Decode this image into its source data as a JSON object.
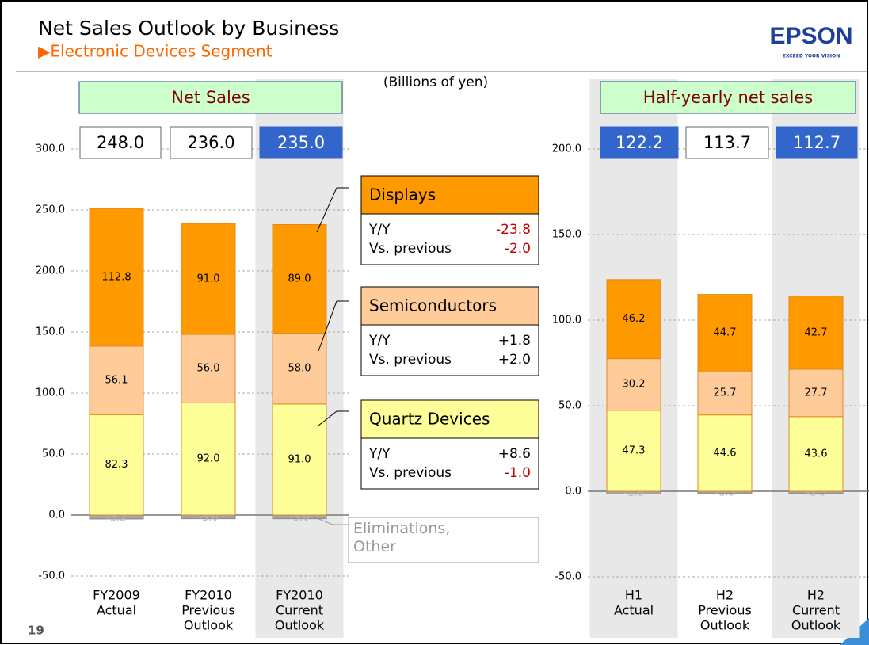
{
  "title": "Net Sales Outlook by Business",
  "subtitle": "▶Electronic Devices Segment",
  "logo": "EPSON",
  "logo_tagline": "EXCEED YOUR VISION",
  "unit": "(Billions of yen)",
  "page_number": "19",
  "callouts": [
    {
      "name": "Displays",
      "color": "#ff9900",
      "rows": [
        {
          "label": "Y/Y",
          "value": "-23.8",
          "color": "#c00000"
        },
        {
          "label": "Vs. previous",
          "value": "-2.0",
          "color": "#c00000"
        }
      ]
    },
    {
      "name": "Semiconductors",
      "color": "#ffcc99",
      "rows": [
        {
          "label": "Y/Y",
          "value": "+1.8",
          "color": "#000000"
        },
        {
          "label": "Vs. previous",
          "value": "+2.0",
          "color": "#000000"
        }
      ]
    },
    {
      "name": "Quartz Devices",
      "color": "#ffff99",
      "rows": [
        {
          "label": "Y/Y",
          "value": "+8.6",
          "color": "#000000"
        },
        {
          "label": "Vs. previous",
          "value": "-1.0",
          "color": "#c00000"
        }
      ]
    }
  ],
  "other_label": "Eliminations, Other",
  "chart_data": [
    {
      "type": "stacked_bar",
      "title": "Net Sales",
      "categories": [
        [
          "FY2009",
          "Actual"
        ],
        [
          "FY2010",
          "Previous",
          "Outlook"
        ],
        [
          "FY2010",
          "Current",
          "Outlook"
        ]
      ],
      "highlight": [
        false,
        false,
        true
      ],
      "totals": [
        248.0,
        236.0,
        235.0
      ],
      "total_labels": [
        "248.0",
        "236.0",
        "235.0"
      ],
      "series": [
        {
          "name": "Eliminations, Other",
          "color": "#a6a6a6",
          "values": [
            -3.2,
            -3.0,
            -3.0
          ],
          "value_labels": [
            "-3.2",
            "-3.0",
            "-3.0"
          ]
        },
        {
          "name": "Quartz Devices",
          "color": "#ffff99",
          "values": [
            82.3,
            92.0,
            91.0
          ],
          "value_labels": [
            "82.3",
            "92.0",
            "91.0"
          ]
        },
        {
          "name": "Semiconductors",
          "color": "#ffcc99",
          "values": [
            56.1,
            56.0,
            58.0
          ],
          "value_labels": [
            "56.1",
            "56.0",
            "58.0"
          ]
        },
        {
          "name": "Displays",
          "color": "#ff9900",
          "values": [
            112.8,
            91.0,
            89.0
          ],
          "value_labels": [
            "112.8",
            "91.0",
            "89.0"
          ]
        }
      ],
      "ylim": [
        -50,
        300
      ],
      "yticks": [
        {
          "value": -50,
          "label": "-50.0"
        },
        {
          "value": 0,
          "label": "0.0"
        },
        {
          "value": 50,
          "label": "50.0"
        },
        {
          "value": 100,
          "label": "100.0"
        },
        {
          "value": 150,
          "label": "150.0"
        },
        {
          "value": 200,
          "label": "200.0"
        },
        {
          "value": 250,
          "label": "250.0"
        },
        {
          "value": 300,
          "label": "300.0"
        }
      ],
      "grid": true
    },
    {
      "type": "stacked_bar",
      "title": "Half-yearly net sales",
      "categories": [
        [
          "H1",
          "Actual"
        ],
        [
          "H2",
          "Previous",
          "Outlook"
        ],
        [
          "H2",
          "Current",
          "Outlook"
        ]
      ],
      "highlight": [
        true,
        false,
        true
      ],
      "totals": [
        122.2,
        113.7,
        112.7
      ],
      "total_labels": [
        "122.2",
        "113.7",
        "112.7"
      ],
      "series": [
        {
          "name": "Eliminations, Other",
          "color": "#a6a6a6",
          "values": [
            -1.6,
            -1.3,
            -1.3
          ],
          "value_labels": [
            "-1.6",
            "-1.3",
            "-1.3"
          ]
        },
        {
          "name": "Quartz Devices",
          "color": "#ffff99",
          "values": [
            47.3,
            44.6,
            43.6
          ]
        },
        {
          "name": "Semiconductors",
          "color": "#ffcc99",
          "values": [
            30.2,
            25.7,
            27.7
          ]
        },
        {
          "name": "Displays",
          "color": "#ff9900",
          "values": [
            46.2,
            44.7,
            42.7
          ]
        }
      ],
      "ylim": [
        -50,
        200
      ],
      "yticks": [
        {
          "value": -50,
          "label": "-50.0"
        },
        {
          "value": 0,
          "label": "0.0"
        },
        {
          "value": 50,
          "label": "50.0"
        },
        {
          "value": 100,
          "label": "100.0"
        },
        {
          "value": 150,
          "label": "150.0"
        },
        {
          "value": 200,
          "label": "200.0"
        }
      ],
      "grid": true
    }
  ]
}
